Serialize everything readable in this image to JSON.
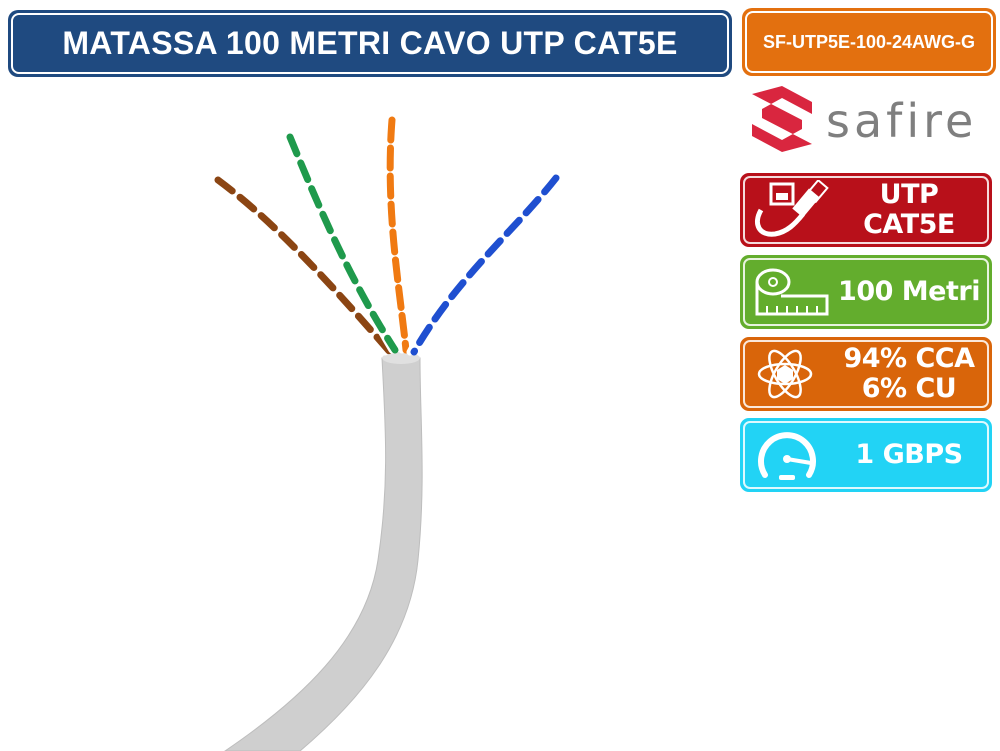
{
  "title": "MATASSA 100 METRI CAVO UTP CAT5E",
  "sku": "SF-UTP5E-100-24AWG-G",
  "logo": {
    "text": "safire",
    "color": "#d9263f",
    "text_color": "#7f7f7f"
  },
  "badges": [
    {
      "icon": "ethernet-cable-icon",
      "lines": [
        "UTP CAT5E"
      ],
      "color": "#b8101a"
    },
    {
      "icon": "measuring-tape-icon",
      "lines": [
        "100 Metri"
      ],
      "color": "#63ad2d"
    },
    {
      "icon": "atom-icon",
      "lines": [
        "94% CCA",
        "6% CU"
      ],
      "color": "#d9650a"
    },
    {
      "icon": "speedometer-icon",
      "lines": [
        "1 GBPS"
      ],
      "color": "#22d3f5"
    }
  ],
  "colors": {
    "title_bg": "#1f4a80",
    "sku_bg": "#e3700f",
    "cable_jacket": "#cfcfcf"
  }
}
